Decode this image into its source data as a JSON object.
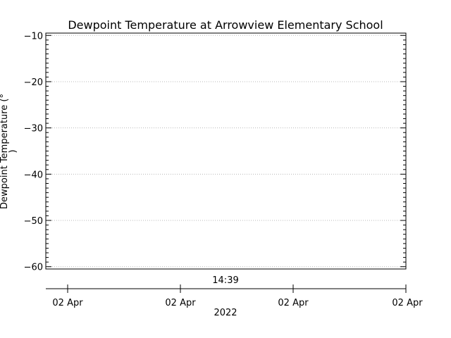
{
  "chart_data": {
    "type": "line",
    "title": "Dewpoint Temperature at Arrowview Elementary School",
    "ylabel_line1": "Dewpoint Temperature (°",
    "ylabel_line2": ")",
    "ylim": [
      -60.5,
      -9.5
    ],
    "y_ticks": [
      -10,
      -20,
      -30,
      -40,
      -50,
      -60
    ],
    "y_tick_labels": [
      "−10",
      "−20",
      "−30",
      "−40",
      "−50",
      "−60"
    ],
    "grid": "dotted-horizontal",
    "series": [],
    "time_label": "14:39",
    "x_tick_labels": [
      "02 Apr",
      "02 Apr",
      "02 Apr",
      "02 Apr"
    ],
    "x_year_label": "2022"
  }
}
